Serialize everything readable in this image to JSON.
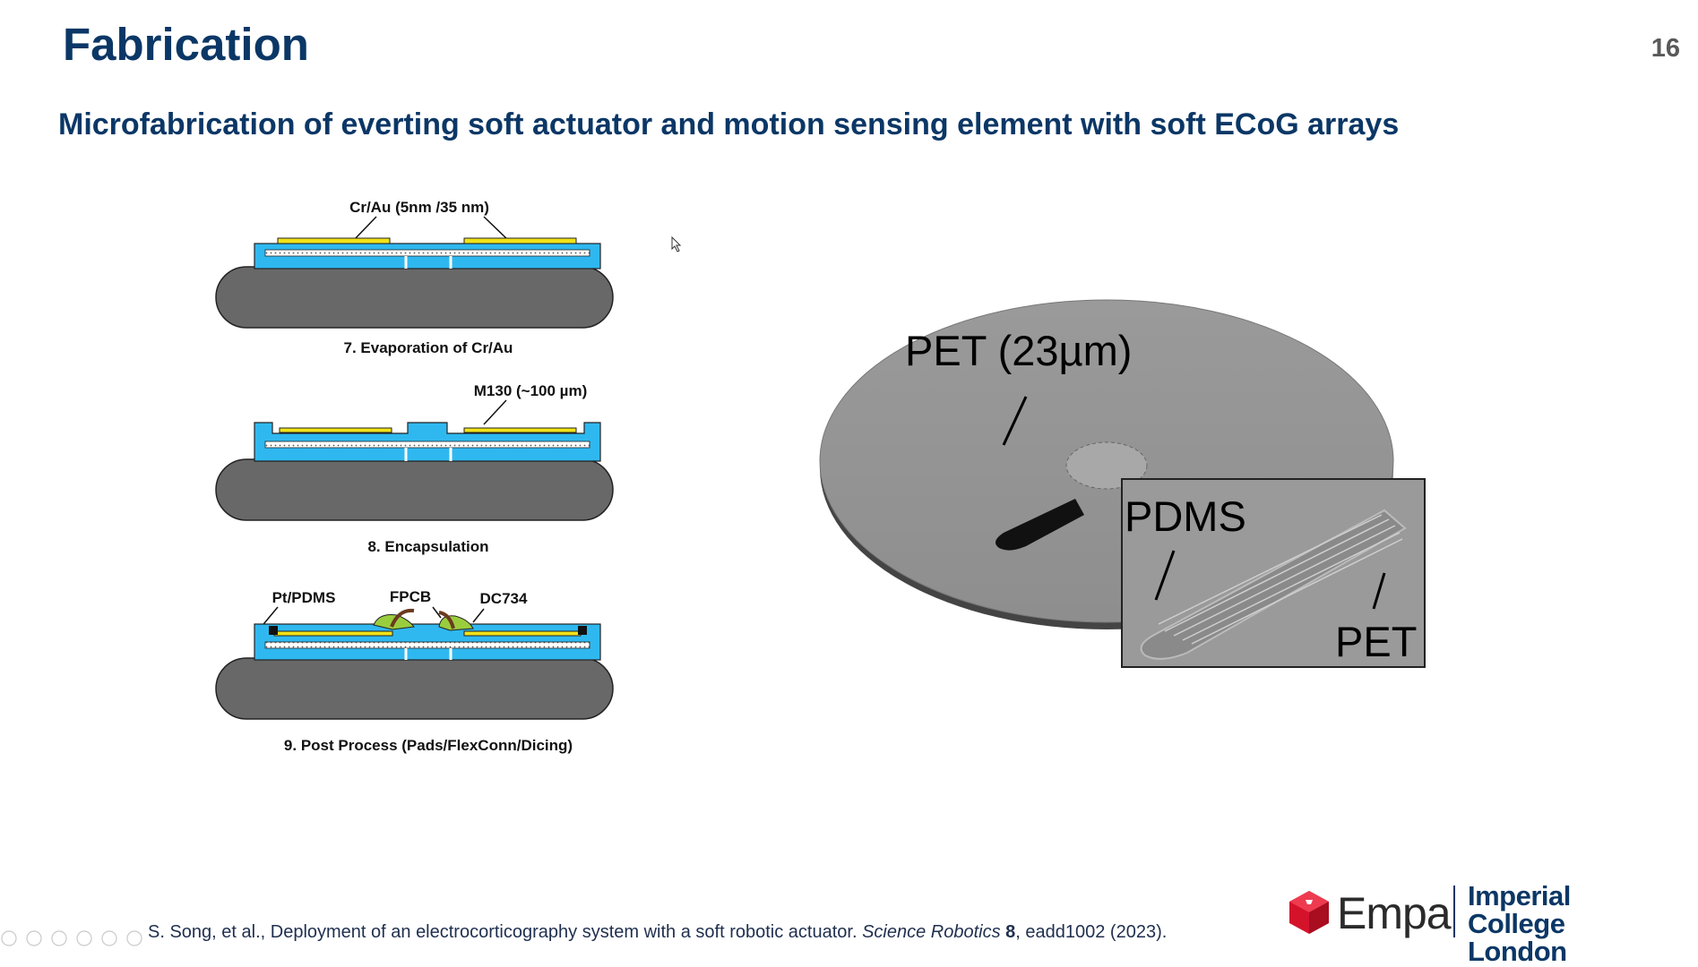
{
  "slide": {
    "title": "Fabrication",
    "page_number": "16",
    "subtitle": "Microfabrication of everting soft actuator and motion sensing element with soft ECoG arrays"
  },
  "diagram": {
    "steps": [
      {
        "annotation": "Cr/Au (5nm /35 nm)",
        "caption": "7. Evaporation of Cr/Au"
      },
      {
        "annotation": "M130 (~100 µm)",
        "caption": "8. Encapsulation"
      },
      {
        "labels": [
          "Pt/PDMS",
          "FPCB",
          "DC734"
        ],
        "caption": "9. Post Process (Pads/FlexConn/Dicing)"
      }
    ],
    "colors": {
      "substrate": "#686868",
      "layer": "#2fb8f0",
      "metal": "#f2e317",
      "pad": "#9acd3e"
    }
  },
  "photo": {
    "label_pet_thickness": "PET (23µm)",
    "inset_label_pdms": "PDMS",
    "inset_label_pet": "PET"
  },
  "citation": {
    "authors": "S. Song, et al., Deployment of an electrocorticography system with a soft robotic actuator. ",
    "journal": "Science Robotics",
    "volume": "8",
    "rest": ", eadd1002 (2023)."
  },
  "logos": {
    "empa": "Empa",
    "imperial_line1": "Imperial College",
    "imperial_line2": "London"
  }
}
